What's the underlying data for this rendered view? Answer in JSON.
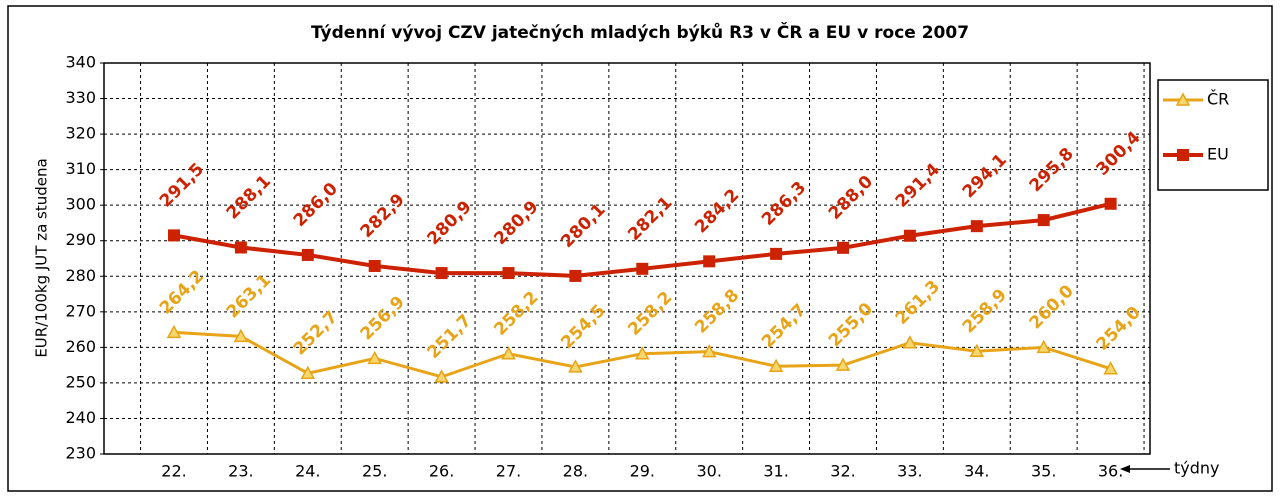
{
  "chart_data": {
    "type": "line",
    "title": "Týdenní vývoj CZV jatečných mladých býků  R3  v ČR a EU v roce 2007",
    "y_label": "EUR/100kg  JUT za studena",
    "x_label": "týdny",
    "categories": [
      "22.",
      "23.",
      "24.",
      "25.",
      "26.",
      "27.",
      "28.",
      "29.",
      "30.",
      "31.",
      "32.",
      "33.",
      "34.",
      "35.",
      "36."
    ],
    "series": [
      {
        "name": "ČR",
        "color": "#e8a317",
        "marker": "triangle",
        "values": [
          264.2,
          263.1,
          252.7,
          256.9,
          251.7,
          258.2,
          254.5,
          258.2,
          258.8,
          254.7,
          255.0,
          261.3,
          258.9,
          260.0,
          254.0
        ],
        "value_labels": [
          "264,2",
          "263,1",
          "252,7",
          "256,9",
          "251,7",
          "258,2",
          "254,5",
          "258,2",
          "258,8",
          "254,7",
          "255,0",
          "261,3",
          "258,9",
          "260,0",
          "254,0"
        ]
      },
      {
        "name": "EU",
        "color": "#cc2200",
        "marker": "square",
        "values": [
          291.5,
          288.1,
          286.0,
          282.9,
          280.9,
          280.9,
          280.1,
          282.1,
          284.2,
          286.3,
          288.0,
          291.4,
          294.1,
          295.8,
          300.4
        ],
        "value_labels": [
          "291,5",
          "288,1",
          "286,0",
          "282,9",
          "280,9",
          "280,9",
          "280,1",
          "282,1",
          "284,2",
          "286,3",
          "288,0",
          "291,4",
          "294,1",
          "295,8",
          "300,4"
        ]
      }
    ],
    "ylim": [
      230,
      340
    ],
    "yticks": [
      230,
      240,
      250,
      260,
      270,
      280,
      290,
      300,
      310,
      320,
      330,
      340
    ],
    "grid": true,
    "legend": "right"
  }
}
